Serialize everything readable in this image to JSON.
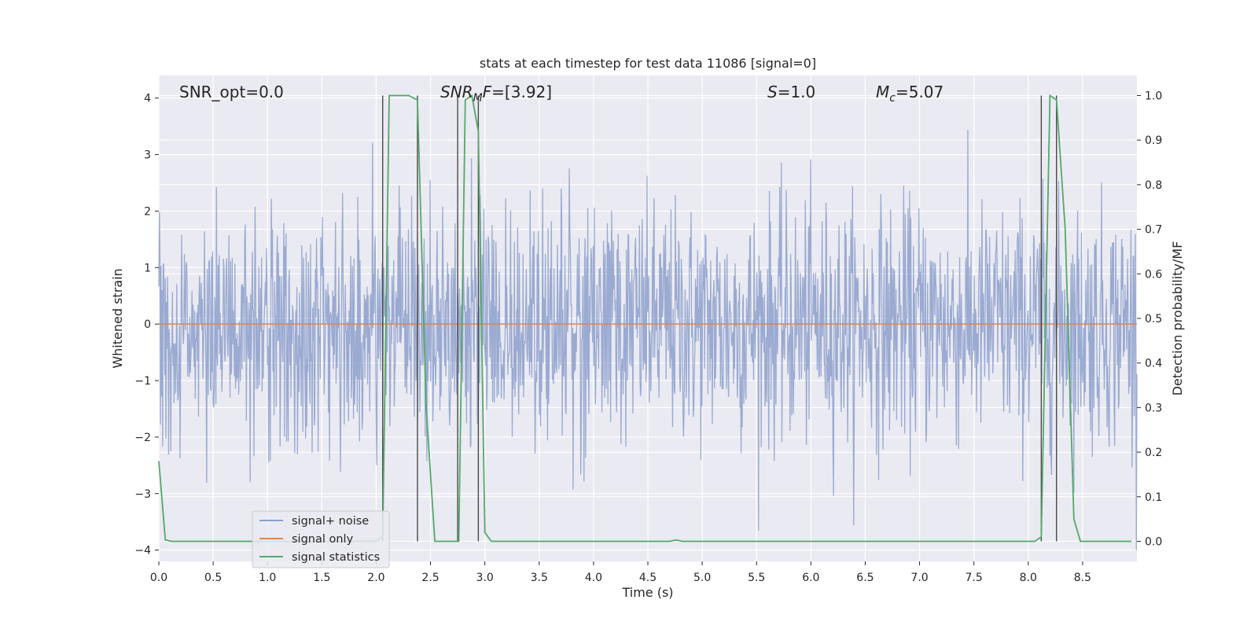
{
  "chart_data": {
    "type": "line",
    "title": "stats at each timestep for test data 11086 [signal=0]",
    "xlabel": "Time (s)",
    "ylabel_left": "Whitened strain",
    "ylabel_right": "Detection probability/MF",
    "xlim": [
      0.0,
      9.0
    ],
    "ylim_left": [
      -4.2,
      4.4
    ],
    "ylim_right": [
      -0.045,
      1.045
    ],
    "xticks": [
      0.0,
      0.5,
      1.0,
      1.5,
      2.0,
      2.5,
      3.0,
      3.5,
      4.0,
      4.5,
      5.0,
      5.5,
      6.0,
      6.5,
      7.0,
      7.5,
      8.0,
      8.5
    ],
    "yticks_left": [
      -4,
      -3,
      -2,
      -1,
      0,
      1,
      2,
      3,
      4
    ],
    "yticks_right": [
      0.0,
      0.1,
      0.2,
      0.3,
      0.4,
      0.5,
      0.6,
      0.7,
      0.8,
      0.9,
      1.0
    ],
    "grid": true,
    "legend_position": "lower-left",
    "annotations": {
      "snr_opt": "SNR_opt=0.0",
      "snr_mf_italic": "SNR",
      "snr_mf_sub": "M",
      "snr_mf_italic2": "F",
      "snr_mf_value": "=[3.92]",
      "s_italic": "S",
      "s_value": "=1.0",
      "mc_italic": "M",
      "mc_sub": "c",
      "mc_value": "=5.07"
    },
    "series": [
      {
        "name": "signal+ noise",
        "color": "#8c9fcb",
        "axis": "left",
        "kind": "noise",
        "duration": 9.0,
        "samples": 1800,
        "range": [
          -4.0,
          4.0
        ]
      },
      {
        "name": "signal only",
        "color": "#dd8452",
        "axis": "left",
        "x": [
          0.0,
          9.0
        ],
        "y": [
          0.0,
          0.0
        ]
      },
      {
        "name": "signal statistics",
        "color": "#55a868",
        "axis": "right",
        "x": [
          0.0,
          0.06,
          0.12,
          2.0,
          2.06,
          2.12,
          2.2,
          2.3,
          2.38,
          2.46,
          2.54,
          2.6,
          2.68,
          2.76,
          2.82,
          2.88,
          2.94,
          3.0,
          3.06,
          3.12,
          4.6,
          4.7,
          4.76,
          4.82,
          5.0,
          8.06,
          8.12,
          8.2,
          8.26,
          8.34,
          8.42,
          8.48,
          8.95
        ],
        "y": [
          0.18,
          0.003,
          0.0,
          0.0,
          0.01,
          1.0,
          1.0,
          1.0,
          0.99,
          0.3,
          0.0,
          0.0,
          0.0,
          0.0,
          0.99,
          1.0,
          0.92,
          0.02,
          0.0,
          0.0,
          0.0,
          0.0,
          0.003,
          0.0,
          0.0,
          0.0,
          0.01,
          1.0,
          0.99,
          0.7,
          0.05,
          0.0,
          0.0
        ]
      }
    ],
    "detection_lines": [
      2.06,
      2.38,
      2.75,
      2.94,
      8.12,
      8.26
    ]
  }
}
